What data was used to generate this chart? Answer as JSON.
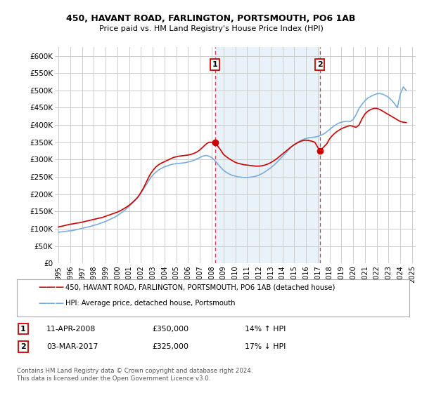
{
  "title": "450, HAVANT ROAD, FARLINGTON, PORTSMOUTH, PO6 1AB",
  "subtitle": "Price paid vs. HM Land Registry's House Price Index (HPI)",
  "legend_label_red": "450, HAVANT ROAD, FARLINGTON, PORTSMOUTH, PO6 1AB (detached house)",
  "legend_label_blue": "HPI: Average price, detached house, Portsmouth",
  "annotation1_date": "11-APR-2008",
  "annotation1_price": "£350,000",
  "annotation1_hpi": "14% ↑ HPI",
  "annotation1_year": 2008.28,
  "annotation1_value": 350000,
  "annotation2_date": "03-MAR-2017",
  "annotation2_price": "£325,000",
  "annotation2_hpi": "17% ↓ HPI",
  "annotation2_year": 2017.17,
  "annotation2_value": 325000,
  "footer": "Contains HM Land Registry data © Crown copyright and database right 2024.\nThis data is licensed under the Open Government Licence v3.0.",
  "red_color": "#cc0000",
  "blue_color": "#7aaddc",
  "annotation_box_color": "#cc0000",
  "shaded_color": "#d8e8f5",
  "grid_color": "#cccccc",
  "bg_color": "#ffffff",
  "ylim": [
    0,
    625000
  ],
  "xlim_start": 1994.7,
  "xlim_end": 2025.3,
  "red_x": [
    1995.0,
    1995.25,
    1995.5,
    1995.75,
    1996.0,
    1996.25,
    1996.5,
    1996.75,
    1997.0,
    1997.25,
    1997.5,
    1997.75,
    1998.0,
    1998.25,
    1998.5,
    1998.75,
    1999.0,
    1999.25,
    1999.5,
    1999.75,
    2000.0,
    2000.25,
    2000.5,
    2000.75,
    2001.0,
    2001.25,
    2001.5,
    2001.75,
    2002.0,
    2002.25,
    2002.5,
    2002.75,
    2003.0,
    2003.25,
    2003.5,
    2003.75,
    2004.0,
    2004.25,
    2004.5,
    2004.75,
    2005.0,
    2005.25,
    2005.5,
    2005.75,
    2006.0,
    2006.25,
    2006.5,
    2006.75,
    2007.0,
    2007.25,
    2007.5,
    2007.75,
    2008.28,
    2008.75,
    2009.0,
    2009.25,
    2009.5,
    2009.75,
    2010.0,
    2010.25,
    2010.5,
    2010.75,
    2011.0,
    2011.25,
    2011.5,
    2011.75,
    2012.0,
    2012.25,
    2012.5,
    2012.75,
    2013.0,
    2013.25,
    2013.5,
    2013.75,
    2014.0,
    2014.25,
    2014.5,
    2014.75,
    2015.0,
    2015.25,
    2015.5,
    2015.75,
    2016.0,
    2016.25,
    2016.5,
    2016.75,
    2017.17,
    2017.75,
    2018.0,
    2018.25,
    2018.5,
    2018.75,
    2019.0,
    2019.25,
    2019.5,
    2019.75,
    2020.0,
    2020.25,
    2020.5,
    2020.75,
    2021.0,
    2021.25,
    2021.5,
    2021.75,
    2022.0,
    2022.25,
    2022.5,
    2022.75,
    2023.0,
    2023.25,
    2023.5,
    2023.75,
    2024.0,
    2024.25,
    2024.5
  ],
  "red_y": [
    105000,
    107000,
    109000,
    111000,
    113000,
    114000,
    116000,
    117000,
    119000,
    121000,
    123000,
    125000,
    127000,
    129000,
    131000,
    133000,
    136000,
    139000,
    142000,
    145000,
    148000,
    152000,
    157000,
    162000,
    168000,
    175000,
    183000,
    192000,
    205000,
    220000,
    238000,
    255000,
    268000,
    278000,
    285000,
    290000,
    294000,
    298000,
    302000,
    306000,
    308000,
    310000,
    311000,
    312000,
    313000,
    315000,
    318000,
    322000,
    328000,
    336000,
    344000,
    350000,
    350000,
    328000,
    315000,
    308000,
    302000,
    297000,
    292000,
    289000,
    287000,
    285000,
    284000,
    283000,
    282000,
    281000,
    281000,
    282000,
    284000,
    287000,
    291000,
    296000,
    302000,
    309000,
    316000,
    323000,
    330000,
    337000,
    343000,
    348000,
    352000,
    355000,
    356000,
    355000,
    353000,
    350000,
    325000,
    345000,
    360000,
    370000,
    378000,
    384000,
    389000,
    393000,
    396000,
    398000,
    396000,
    393000,
    400000,
    418000,
    432000,
    440000,
    445000,
    448000,
    448000,
    445000,
    440000,
    435000,
    430000,
    425000,
    420000,
    415000,
    410000,
    408000,
    407000
  ],
  "blue_x": [
    1995.0,
    1995.25,
    1995.5,
    1995.75,
    1996.0,
    1996.25,
    1996.5,
    1996.75,
    1997.0,
    1997.25,
    1997.5,
    1997.75,
    1998.0,
    1998.25,
    1998.5,
    1998.75,
    1999.0,
    1999.25,
    1999.5,
    1999.75,
    2000.0,
    2000.25,
    2000.5,
    2000.75,
    2001.0,
    2001.25,
    2001.5,
    2001.75,
    2002.0,
    2002.25,
    2002.5,
    2002.75,
    2003.0,
    2003.25,
    2003.5,
    2003.75,
    2004.0,
    2004.25,
    2004.5,
    2004.75,
    2005.0,
    2005.25,
    2005.5,
    2005.75,
    2006.0,
    2006.25,
    2006.5,
    2006.75,
    2007.0,
    2007.25,
    2007.5,
    2007.75,
    2008.0,
    2008.25,
    2008.5,
    2008.75,
    2009.0,
    2009.25,
    2009.5,
    2009.75,
    2010.0,
    2010.25,
    2010.5,
    2010.75,
    2011.0,
    2011.25,
    2011.5,
    2011.75,
    2012.0,
    2012.25,
    2012.5,
    2012.75,
    2013.0,
    2013.25,
    2013.5,
    2013.75,
    2014.0,
    2014.25,
    2014.5,
    2014.75,
    2015.0,
    2015.25,
    2015.5,
    2015.75,
    2016.0,
    2016.25,
    2016.5,
    2016.75,
    2017.0,
    2017.25,
    2017.5,
    2017.75,
    2018.0,
    2018.25,
    2018.5,
    2018.75,
    2019.0,
    2019.25,
    2019.5,
    2019.75,
    2020.0,
    2020.25,
    2020.5,
    2020.75,
    2021.0,
    2021.25,
    2021.5,
    2021.75,
    2022.0,
    2022.25,
    2022.5,
    2022.75,
    2023.0,
    2023.25,
    2023.5,
    2023.75,
    2024.0,
    2024.25,
    2024.5
  ],
  "blue_y": [
    90000,
    91000,
    92000,
    93000,
    94000,
    95000,
    97000,
    99000,
    101000,
    103000,
    105000,
    107000,
    110000,
    112000,
    115000,
    118000,
    121000,
    125000,
    129000,
    133000,
    138000,
    144000,
    150000,
    157000,
    165000,
    173000,
    182000,
    192000,
    203000,
    216000,
    230000,
    244000,
    255000,
    263000,
    270000,
    275000,
    279000,
    282000,
    285000,
    287000,
    288000,
    289000,
    290000,
    291000,
    293000,
    295000,
    298000,
    302000,
    306000,
    310000,
    312000,
    310000,
    306000,
    298000,
    288000,
    278000,
    269000,
    263000,
    258000,
    254000,
    252000,
    250000,
    249000,
    248000,
    248000,
    249000,
    250000,
    252000,
    255000,
    259000,
    264000,
    270000,
    276000,
    283000,
    291000,
    300000,
    309000,
    318000,
    327000,
    336000,
    343000,
    349000,
    354000,
    358000,
    361000,
    363000,
    364000,
    365000,
    367000,
    370000,
    374000,
    380000,
    387000,
    394000,
    400000,
    405000,
    408000,
    410000,
    411000,
    410000,
    416000,
    430000,
    448000,
    460000,
    470000,
    478000,
    483000,
    487000,
    490000,
    491000,
    489000,
    485000,
    480000,
    472000,
    462000,
    450000,
    490000,
    510000,
    500000
  ],
  "yticks": [
    0,
    50000,
    100000,
    150000,
    200000,
    250000,
    300000,
    350000,
    400000,
    450000,
    500000,
    550000,
    600000
  ],
  "xticks": [
    1995,
    1996,
    1997,
    1998,
    1999,
    2000,
    2001,
    2002,
    2003,
    2004,
    2005,
    2006,
    2007,
    2008,
    2009,
    2010,
    2011,
    2012,
    2013,
    2014,
    2015,
    2016,
    2017,
    2018,
    2019,
    2020,
    2021,
    2022,
    2023,
    2024,
    2025
  ]
}
